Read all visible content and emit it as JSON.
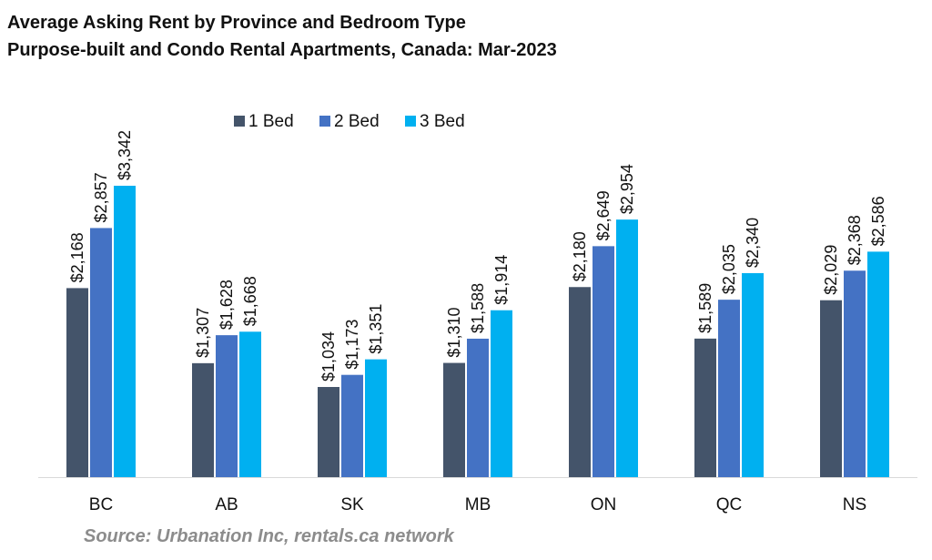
{
  "title_line1": "Average Asking Rent by Province and Bedroom Type",
  "title_line2": "Purpose-built and Condo Rental Apartments, Canada: Mar-2023",
  "source": "Source: Urbanation Inc, rentals.ca network",
  "chart_data": {
    "type": "bar",
    "categories": [
      "BC",
      "AB",
      "SK",
      "MB",
      "ON",
      "QC",
      "NS"
    ],
    "series": [
      {
        "name": "1 Bed",
        "color": "#44546a",
        "values": [
          2168,
          1307,
          1034,
          1310,
          2180,
          1589,
          2029
        ],
        "labels": [
          "$2,168",
          "$1,307",
          "$1,034",
          "$1,310",
          "$2,180",
          "$1,589",
          "$2,029"
        ]
      },
      {
        "name": "2 Bed",
        "color": "#4472c4",
        "values": [
          2857,
          1628,
          1173,
          1588,
          2649,
          2035,
          2368
        ],
        "labels": [
          "$2,857",
          "$1,628",
          "$1,173",
          "$1,588",
          "$2,649",
          "$2,035",
          "$2,368"
        ]
      },
      {
        "name": "3 Bed",
        "color": "#00b0f0",
        "values": [
          3342,
          1668,
          1351,
          1914,
          2954,
          2340,
          2586
        ],
        "labels": [
          "$3,342",
          "$1,668",
          "$1,351",
          "$1,914",
          "$2,954",
          "$2,340",
          "$2,586"
        ]
      }
    ],
    "ylim": [
      0,
      3342
    ],
    "legend_position": "top-center",
    "grid": false
  }
}
